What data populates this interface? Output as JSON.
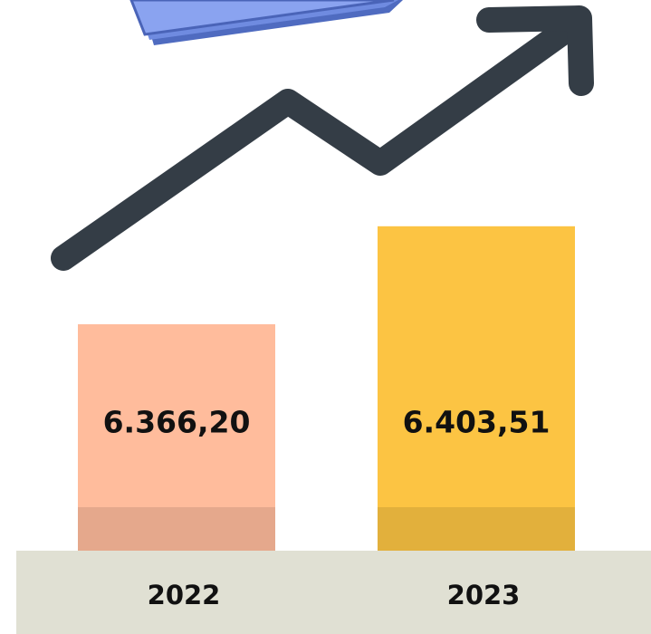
{
  "chart_data": {
    "type": "bar",
    "categories": [
      "2022",
      "2023"
    ],
    "values": [
      6366.2,
      6403.51
    ],
    "value_labels": [
      "6.366,20",
      "6.403,51"
    ],
    "colors": [
      "#ffbc9c",
      "#fcc443"
    ],
    "ylim": [
      6280,
      6420
    ]
  }
}
